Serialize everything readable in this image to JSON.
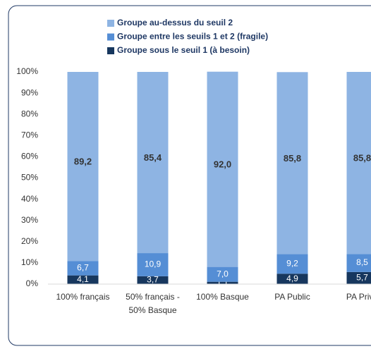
{
  "chart_data": {
    "type": "stacked_bar",
    "categories": [
      "100% français",
      "50% français - 50% Basque",
      "100% Basque",
      "PA Public",
      "PA Privé"
    ],
    "series": [
      {
        "name": "Groupe au-dessus du seuil 2",
        "color": "#8eb4e3",
        "values": [
          89.2,
          85.4,
          92.0,
          85.8,
          85.8
        ],
        "value_labels": [
          "89,2",
          "85,4",
          "92,0",
          "85,8",
          "85,8"
        ]
      },
      {
        "name": "Groupe entre les seuils 1 et 2 (fragile)",
        "color": "#558ed5",
        "values": [
          6.7,
          10.9,
          7.0,
          9.2,
          8.5
        ],
        "value_labels": [
          "6,7",
          "10,9",
          "7,0",
          "9,2",
          "8,5"
        ]
      },
      {
        "name": "Groupe sous le seuil 1 (à besoin)",
        "color": "#17375e",
        "values": [
          4.1,
          3.7,
          1.1,
          4.9,
          5.7
        ],
        "value_labels": [
          "4,1",
          "3,7",
          "1,1",
          "4,9",
          "5,7"
        ]
      }
    ],
    "ylim": [
      0,
      100
    ],
    "yticks": [
      {
        "value": 0,
        "label": "0%"
      },
      {
        "value": 10,
        "label": "10%"
      },
      {
        "value": 20,
        "label": "20%"
      },
      {
        "value": 30,
        "label": "30%"
      },
      {
        "value": 40,
        "label": "40%"
      },
      {
        "value": 50,
        "label": "50%"
      },
      {
        "value": 60,
        "label": "60%"
      },
      {
        "value": 70,
        "label": "70%"
      },
      {
        "value": 80,
        "label": "80%"
      },
      {
        "value": 90,
        "label": "90%"
      },
      {
        "value": 100,
        "label": "100%"
      }
    ],
    "grid": false,
    "legend": "top"
  }
}
